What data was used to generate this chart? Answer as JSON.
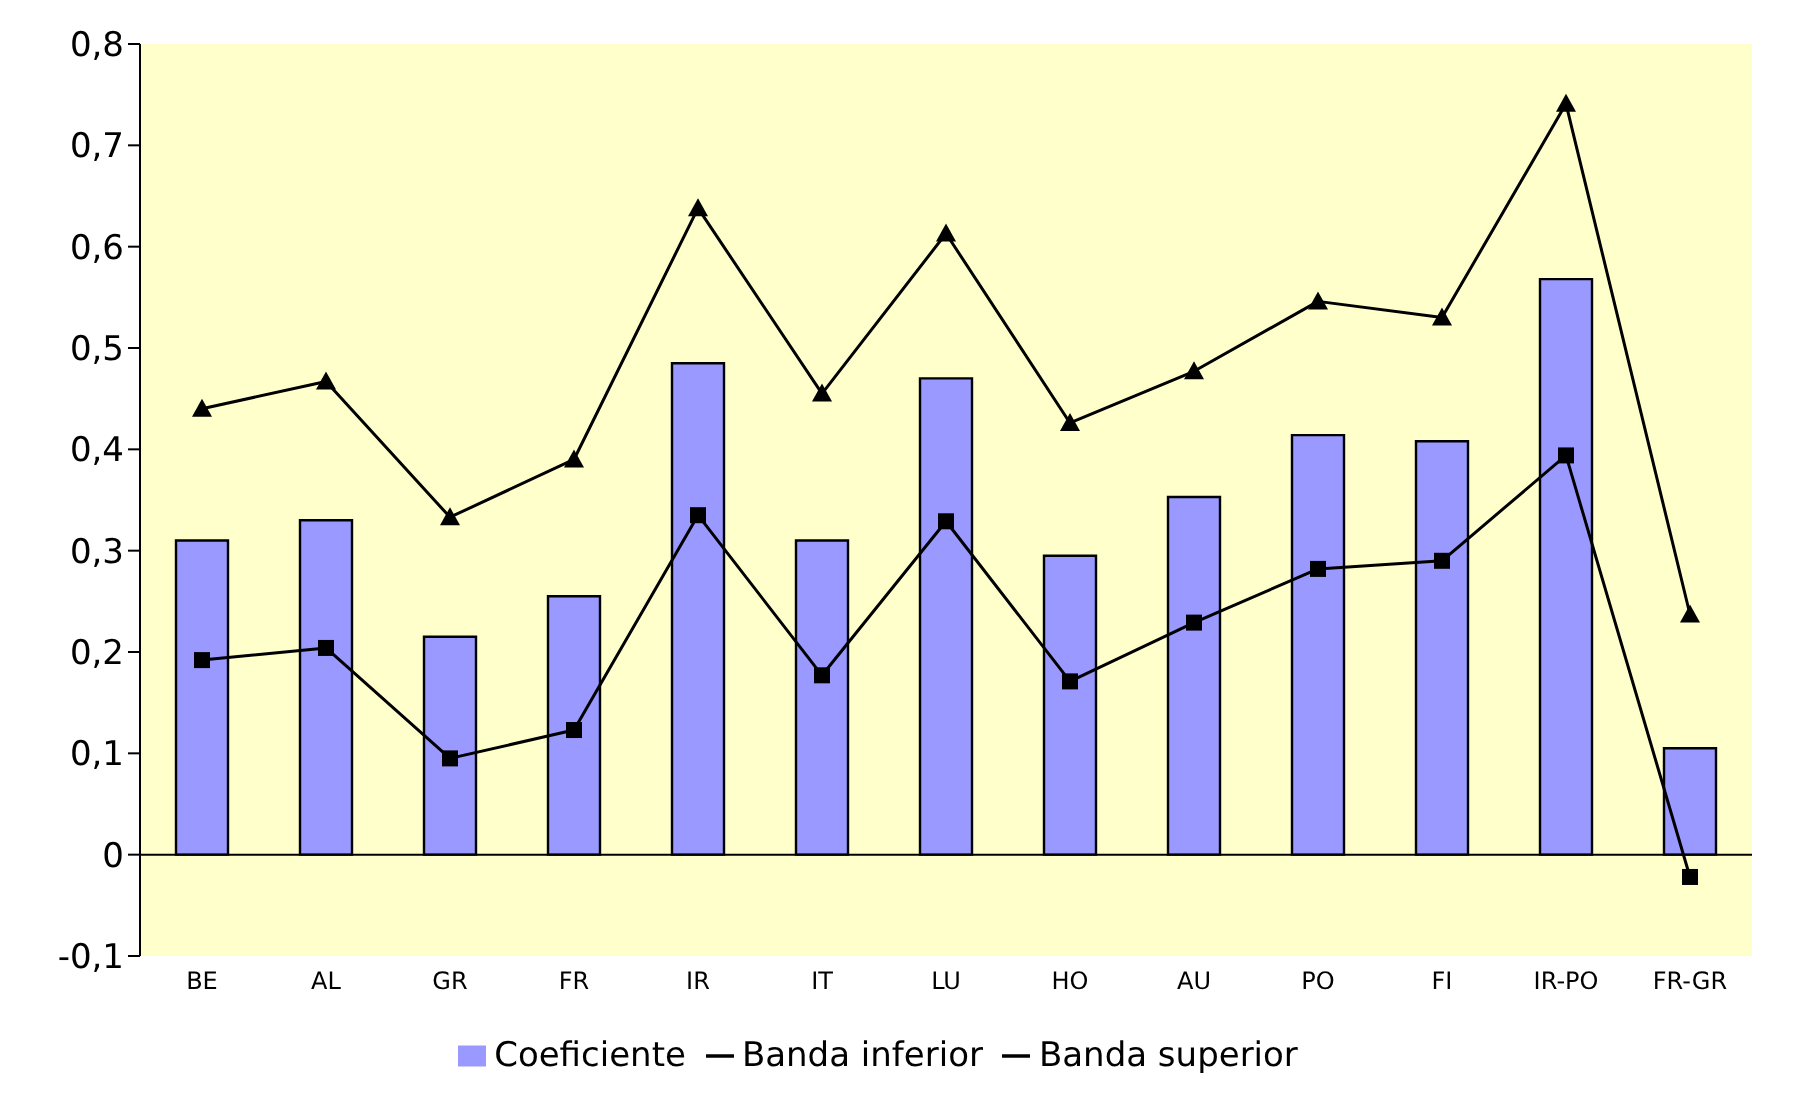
{
  "chart_data": {
    "type": "bar",
    "categories": [
      "BE",
      "AL",
      "GR",
      "FR",
      "IR",
      "IT",
      "LU",
      "HO",
      "AU",
      "PO",
      "FI",
      "IR-PO",
      "FR-GR"
    ],
    "series": [
      {
        "name": "Coeficiente",
        "color": "#9999ff",
        "values": [
          0.31,
          0.33,
          0.215,
          0.255,
          0.485,
          0.31,
          0.47,
          0.295,
          0.353,
          0.414,
          0.408,
          0.568,
          0.105
        ]
      },
      {
        "name": "Banda inferior",
        "type": "line",
        "color": "#000000",
        "marker": "square",
        "values": [
          0.192,
          0.204,
          0.095,
          0.123,
          0.335,
          0.177,
          0.329,
          0.171,
          0.229,
          0.282,
          0.29,
          0.394,
          -0.022
        ]
      },
      {
        "name": "Banda superior",
        "type": "line",
        "color": "#000000",
        "marker": "triangle",
        "values": [
          0.44,
          0.467,
          0.333,
          0.39,
          0.638,
          0.455,
          0.613,
          0.426,
          0.477,
          0.546,
          0.53,
          0.741,
          0.237
        ]
      }
    ],
    "ylim": [
      -0.1,
      0.8
    ],
    "yticks": [
      {
        "value": -0.1,
        "label": "-0,1"
      },
      {
        "value": 0,
        "label": "0"
      },
      {
        "value": 0.1,
        "label": "0,1"
      },
      {
        "value": 0.2,
        "label": "0,2"
      },
      {
        "value": 0.3,
        "label": "0,3"
      },
      {
        "value": 0.4,
        "label": "0,4"
      },
      {
        "value": 0.5,
        "label": "0,5"
      },
      {
        "value": 0.6,
        "label": "0,6"
      },
      {
        "value": 0.7,
        "label": "0,7"
      },
      {
        "value": 0.8,
        "label": "0,8"
      }
    ],
    "legend": "bottom"
  }
}
